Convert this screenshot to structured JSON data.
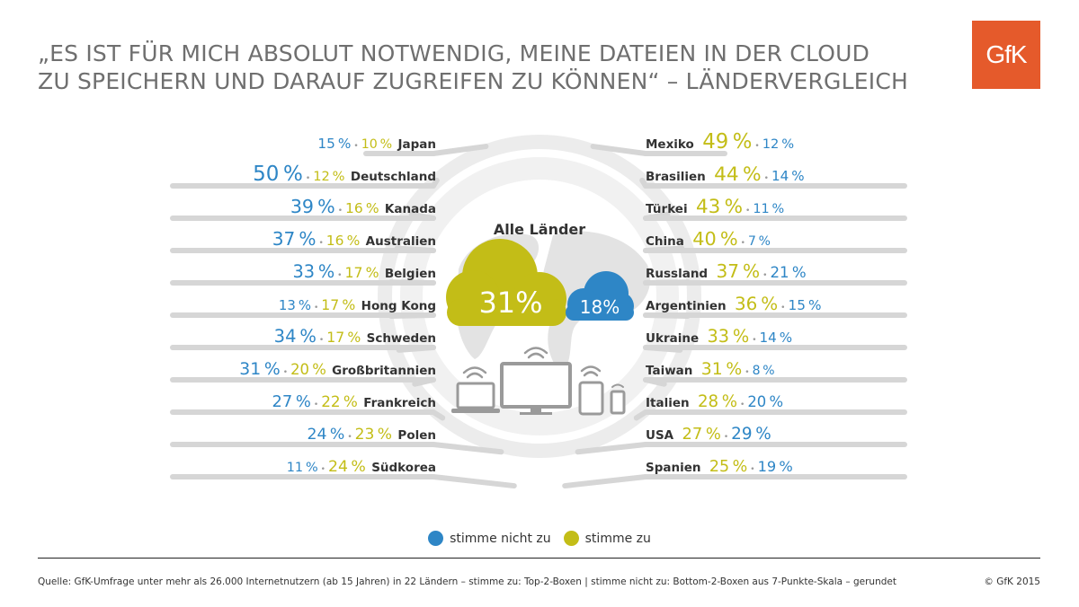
{
  "title_lines": [
    "„ES IST FÜR MICH ABSOLUT NOTWENDIG, MEINE DATEIEN IN DER CLOUD",
    "ZU SPEICHERN UND DARAUF ZUGREIFEN ZU KÖNNEN“ – LÄNDERVERGLEICH"
  ],
  "logo_text": "GfK",
  "colors": {
    "agree": "#c3bd17",
    "disagree": "#2e86c6",
    "line": "#d6d6d6",
    "label": "#333333"
  },
  "center": {
    "label": "Alle Länder",
    "agree": "31%",
    "disagree": "18%"
  },
  "legend": {
    "disagree": "stimme nicht zu",
    "agree": "stimme zu"
  },
  "source": "Quelle: GfK-Umfrage unter mehr als 26.000 Internetnutzern (ab 15 Jahren) in 22 Ländern – stimme zu: Top-2-Boxen  | stimme nicht zu: Bottom-2-Boxen aus 7-Punkte-Skala – gerundet",
  "copyright": "© GfK 2015",
  "chart_data": {
    "type": "table",
    "unit": "%",
    "series": [
      "stimme zu",
      "stimme nicht zu"
    ],
    "all_countries": {
      "agree": 31,
      "disagree": 18
    },
    "left": [
      {
        "country": "Japan",
        "agree": 10,
        "disagree": 15
      },
      {
        "country": "Deutschland",
        "agree": 12,
        "disagree": 50
      },
      {
        "country": "Kanada",
        "agree": 16,
        "disagree": 39
      },
      {
        "country": "Australien",
        "agree": 16,
        "disagree": 37
      },
      {
        "country": "Belgien",
        "agree": 17,
        "disagree": 33
      },
      {
        "country": "Hong Kong",
        "agree": 17,
        "disagree": 13
      },
      {
        "country": "Schweden",
        "agree": 17,
        "disagree": 34
      },
      {
        "country": "Großbritannien",
        "agree": 20,
        "disagree": 31
      },
      {
        "country": "Frankreich",
        "agree": 22,
        "disagree": 27
      },
      {
        "country": "Polen",
        "agree": 23,
        "disagree": 24
      },
      {
        "country": "Südkorea",
        "agree": 24,
        "disagree": 11
      }
    ],
    "right": [
      {
        "country": "Mexiko",
        "agree": 49,
        "disagree": 12
      },
      {
        "country": "Brasilien",
        "agree": 44,
        "disagree": 14
      },
      {
        "country": "Türkei",
        "agree": 43,
        "disagree": 11
      },
      {
        "country": "China",
        "agree": 40,
        "disagree": 7
      },
      {
        "country": "Russland",
        "agree": 37,
        "disagree": 21
      },
      {
        "country": "Argentinien",
        "agree": 36,
        "disagree": 15
      },
      {
        "country": "Ukraine",
        "agree": 33,
        "disagree": 14
      },
      {
        "country": "Taiwan",
        "agree": 31,
        "disagree": 8
      },
      {
        "country": "Italien",
        "agree": 28,
        "disagree": 20
      },
      {
        "country": "USA",
        "agree": 27,
        "disagree": 29
      },
      {
        "country": "Spanien",
        "agree": 25,
        "disagree": 19
      }
    ]
  }
}
